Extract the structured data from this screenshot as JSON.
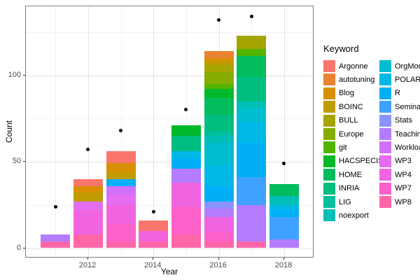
{
  "chart_data": {
    "type": "bar",
    "stacked": true,
    "xlabel": "Year",
    "ylabel": "Count",
    "legend_title": "Keyword",
    "x": [
      2011,
      2012,
      2013,
      2014,
      2015,
      2016,
      2017,
      2018
    ],
    "x_major_ticks": [
      2012,
      2014,
      2016,
      2018
    ],
    "x_minor_ticks": [
      2011,
      2013,
      2015,
      2017
    ],
    "y_major_ticks": [
      0,
      50,
      100
    ],
    "y_minor_ticks": [
      25,
      75,
      125
    ],
    "ylim": [
      0,
      140
    ],
    "grid": true,
    "legend_position": "right",
    "series": [
      {
        "name": "Argonne",
        "color": "#F8766D",
        "values": [
          0,
          4,
          7,
          6,
          0,
          0,
          0,
          0
        ]
      },
      {
        "name": "autotuning",
        "color": "#EB8335",
        "values": [
          0,
          0,
          0,
          0,
          0,
          4,
          0,
          0
        ]
      },
      {
        "name": "Blog",
        "color": "#D89000",
        "values": [
          0,
          4,
          5,
          0,
          0,
          2,
          0,
          0
        ]
      },
      {
        "name": "BOINC",
        "color": "#C09B00",
        "values": [
          0,
          5,
          4,
          0,
          0,
          2,
          0,
          0
        ]
      },
      {
        "name": "BULL",
        "color": "#A5A500",
        "values": [
          0,
          0,
          0,
          0,
          0,
          4,
          8,
          0
        ]
      },
      {
        "name": "Europe",
        "color": "#86AC00",
        "values": [
          0,
          0,
          0,
          0,
          0,
          7,
          0,
          0
        ]
      },
      {
        "name": "git",
        "color": "#53B400",
        "values": [
          0,
          0,
          0,
          0,
          0,
          3,
          4,
          0
        ]
      },
      {
        "name": "HACSPECIS",
        "color": "#00B92A",
        "values": [
          0,
          0,
          0,
          0,
          6,
          5,
          0,
          0
        ]
      },
      {
        "name": "HOME",
        "color": "#00BC5C",
        "values": [
          0,
          0,
          0,
          0,
          0,
          10,
          12,
          7
        ]
      },
      {
        "name": "INRIA",
        "color": "#00BE7F",
        "values": [
          0,
          0,
          0,
          0,
          9,
          9,
          14,
          0
        ]
      },
      {
        "name": "LIG",
        "color": "#00BF9C",
        "values": [
          0,
          0,
          0,
          0,
          0,
          3,
          0,
          0
        ]
      },
      {
        "name": "noexport",
        "color": "#00BFB6",
        "values": [
          0,
          0,
          0,
          0,
          0,
          4,
          4,
          5
        ]
      },
      {
        "name": "OrgMode",
        "color": "#00BDCF",
        "values": [
          0,
          0,
          0,
          0,
          0,
          13,
          8,
          0
        ]
      },
      {
        "name": "POLARIS",
        "color": "#00B8E5",
        "values": [
          0,
          0,
          0,
          0,
          4,
          12,
          12,
          3
        ]
      },
      {
        "name": "R",
        "color": "#00AFF6",
        "values": [
          0,
          0,
          4,
          0,
          6,
          9,
          20,
          4
        ]
      },
      {
        "name": "Seminar",
        "color": "#3FA2FF",
        "values": [
          0,
          0,
          0,
          0,
          0,
          0,
          16,
          13
        ]
      },
      {
        "name": "Stats",
        "color": "#8B93FF",
        "values": [
          0,
          0,
          0,
          0,
          0,
          4,
          0,
          0
        ]
      },
      {
        "name": "Teaching",
        "color": "#B47CFF",
        "values": [
          4,
          0,
          0,
          0,
          8,
          5,
          21,
          5
        ]
      },
      {
        "name": "Workload",
        "color": "#D170FB",
        "values": [
          0,
          0,
          5,
          0,
          0,
          0,
          0,
          0
        ]
      },
      {
        "name": "WP3",
        "color": "#E46DF1",
        "values": [
          0,
          5,
          6,
          0,
          0,
          0,
          0,
          0
        ]
      },
      {
        "name": "WP4",
        "color": "#F164DF",
        "values": [
          0,
          14,
          11,
          6,
          14,
          9,
          0,
          0
        ]
      },
      {
        "name": "WP7",
        "color": "#FB61C8",
        "values": [
          0,
          0,
          10,
          0,
          16,
          5,
          0,
          0
        ]
      },
      {
        "name": "WP8",
        "color": "#FF66A8",
        "values": [
          4,
          8,
          4,
          4,
          8,
          4,
          4,
          0
        ]
      }
    ],
    "bar_totals": [
      8,
      40,
      56,
      16,
      71,
      114,
      123,
      37
    ],
    "points": {
      "name": "total-markers",
      "color": "#000000",
      "values": [
        24,
        57,
        68,
        21,
        80,
        132,
        134,
        49
      ]
    }
  },
  "colors": {
    "panel_border": "#7f7f7f",
    "grid_major": "#e3e3e3",
    "grid_minor": "#f2f2f2",
    "axis_text": "#4d4d4d",
    "point": "#000000"
  }
}
